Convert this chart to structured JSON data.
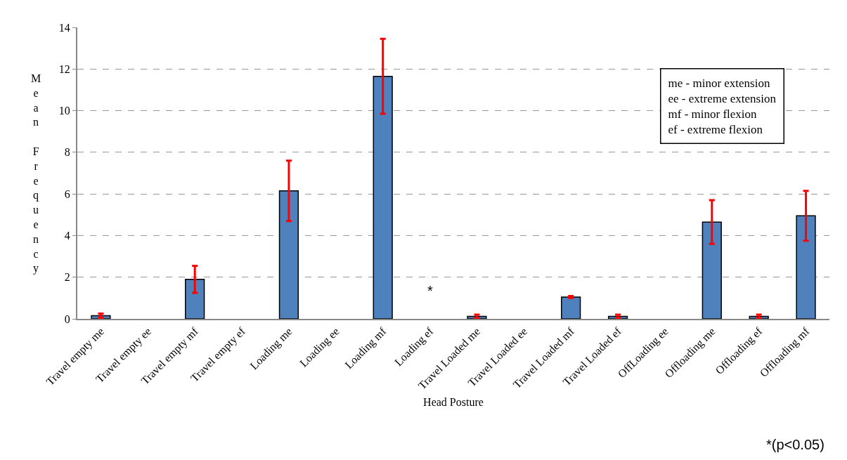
{
  "chart_data": {
    "type": "bar",
    "xlabel": "Head Posture",
    "ylabel": "Mean Frequency",
    "categories": [
      "Travel empty me",
      "Travel empty ee",
      "Travel empty mf",
      "Travel empty ef",
      "Loading me",
      "Loading ee",
      "Loading mf",
      "Loading ef",
      "Travel Loaded me",
      "Travel Loaded ee",
      "Travel Loaded mf",
      "Travel Loaded ef",
      "OffLoading ee",
      "Offloading me",
      "Offloading ef",
      "Offloading mf"
    ],
    "values": [
      0.15,
      0,
      1.9,
      0,
      6.15,
      0,
      11.65,
      0,
      0.12,
      0,
      1.05,
      0.12,
      0,
      4.65,
      0.12,
      4.95
    ],
    "errors": [
      0.1,
      null,
      0.65,
      null,
      1.45,
      null,
      1.8,
      null,
      0.08,
      null,
      0.05,
      0.08,
      null,
      1.05,
      0.08,
      1.2
    ],
    "color": "#4f81bd",
    "ylim": [
      0,
      14
    ],
    "yticks": [
      0,
      2,
      4,
      6,
      8,
      10,
      12,
      14
    ],
    "grid": "y",
    "annotations": [
      "me - minor extension\nee - extreme extension\nmf - minor flexion\nef - extreme flexion",
      "*(p<0.05)",
      "*"
    ]
  }
}
